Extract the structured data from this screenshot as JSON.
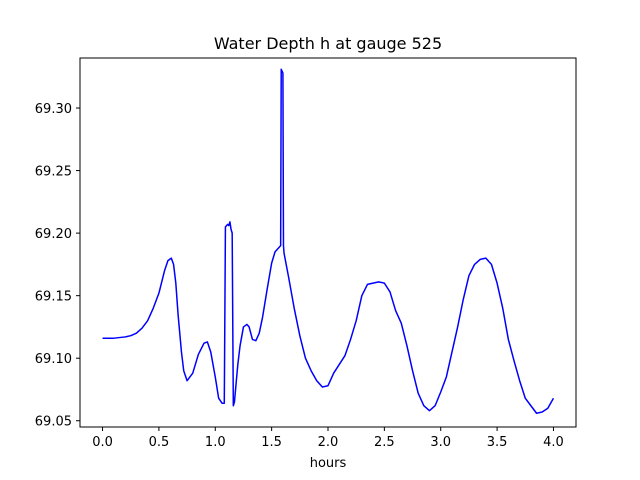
{
  "chart_data": {
    "type": "line",
    "title": "Water Depth h at gauge 525",
    "xlabel": "hours",
    "ylabel": "",
    "xlim": [
      -0.2,
      4.2
    ],
    "ylim": [
      69.045,
      69.34
    ],
    "xticks": [
      0.0,
      0.5,
      1.0,
      1.5,
      2.0,
      2.5,
      3.0,
      3.5,
      4.0
    ],
    "xtick_labels": [
      "0.0",
      "0.5",
      "1.0",
      "1.5",
      "2.0",
      "2.5",
      "3.0",
      "3.5",
      "4.0"
    ],
    "yticks": [
      69.05,
      69.1,
      69.15,
      69.2,
      69.25,
      69.3
    ],
    "ytick_labels": [
      "69.05",
      "69.10",
      "69.15",
      "69.20",
      "69.25",
      "69.30"
    ],
    "grid": false,
    "legend": "none",
    "series": [
      {
        "color": "#0000ff",
        "x": [
          0.0,
          0.1,
          0.2,
          0.25,
          0.3,
          0.35,
          0.4,
          0.45,
          0.5,
          0.55,
          0.58,
          0.61,
          0.63,
          0.65,
          0.67,
          0.7,
          0.72,
          0.75,
          0.8,
          0.85,
          0.9,
          0.93,
          0.96,
          1.0,
          1.03,
          1.06,
          1.08,
          1.09,
          1.1,
          1.11,
          1.12,
          1.13,
          1.14,
          1.15,
          1.16,
          1.17,
          1.18,
          1.2,
          1.22,
          1.25,
          1.28,
          1.3,
          1.33,
          1.36,
          1.39,
          1.42,
          1.46,
          1.5,
          1.53,
          1.56,
          1.58,
          1.585,
          1.59,
          1.595,
          1.6,
          1.605,
          1.61,
          1.65,
          1.7,
          1.75,
          1.8,
          1.85,
          1.9,
          1.95,
          2.0,
          2.05,
          2.1,
          2.15,
          2.2,
          2.25,
          2.3,
          2.35,
          2.4,
          2.45,
          2.5,
          2.55,
          2.6,
          2.65,
          2.7,
          2.75,
          2.8,
          2.85,
          2.9,
          2.95,
          3.0,
          3.05,
          3.1,
          3.15,
          3.2,
          3.25,
          3.3,
          3.35,
          3.4,
          3.45,
          3.5,
          3.55,
          3.6,
          3.65,
          3.7,
          3.75,
          3.8,
          3.85,
          3.9,
          3.95,
          4.0
        ],
        "y": [
          69.116,
          69.116,
          69.117,
          69.118,
          69.12,
          69.124,
          69.13,
          69.14,
          69.152,
          69.17,
          69.178,
          69.18,
          69.175,
          69.16,
          69.135,
          69.105,
          69.09,
          69.082,
          69.088,
          69.103,
          69.112,
          69.113,
          69.105,
          69.085,
          69.068,
          69.064,
          69.064,
          69.205,
          69.206,
          69.207,
          69.206,
          69.209,
          69.203,
          69.2,
          69.062,
          69.065,
          69.075,
          69.095,
          69.11,
          69.125,
          69.127,
          69.125,
          69.115,
          69.114,
          69.12,
          69.133,
          69.155,
          69.176,
          69.185,
          69.188,
          69.19,
          69.331,
          69.33,
          69.329,
          69.328,
          69.19,
          69.184,
          69.165,
          69.14,
          69.118,
          69.1,
          69.09,
          69.082,
          69.077,
          69.078,
          69.088,
          69.095,
          69.102,
          69.115,
          69.13,
          69.15,
          69.159,
          69.16,
          69.161,
          69.16,
          69.153,
          69.138,
          69.128,
          69.11,
          69.09,
          69.072,
          69.062,
          69.058,
          69.062,
          69.073,
          69.085,
          69.105,
          69.125,
          69.147,
          69.166,
          69.175,
          69.179,
          69.18,
          69.175,
          69.16,
          69.14,
          69.115,
          69.098,
          69.082,
          69.068,
          69.062,
          69.056,
          69.057,
          69.06,
          69.068
        ]
      }
    ]
  }
}
